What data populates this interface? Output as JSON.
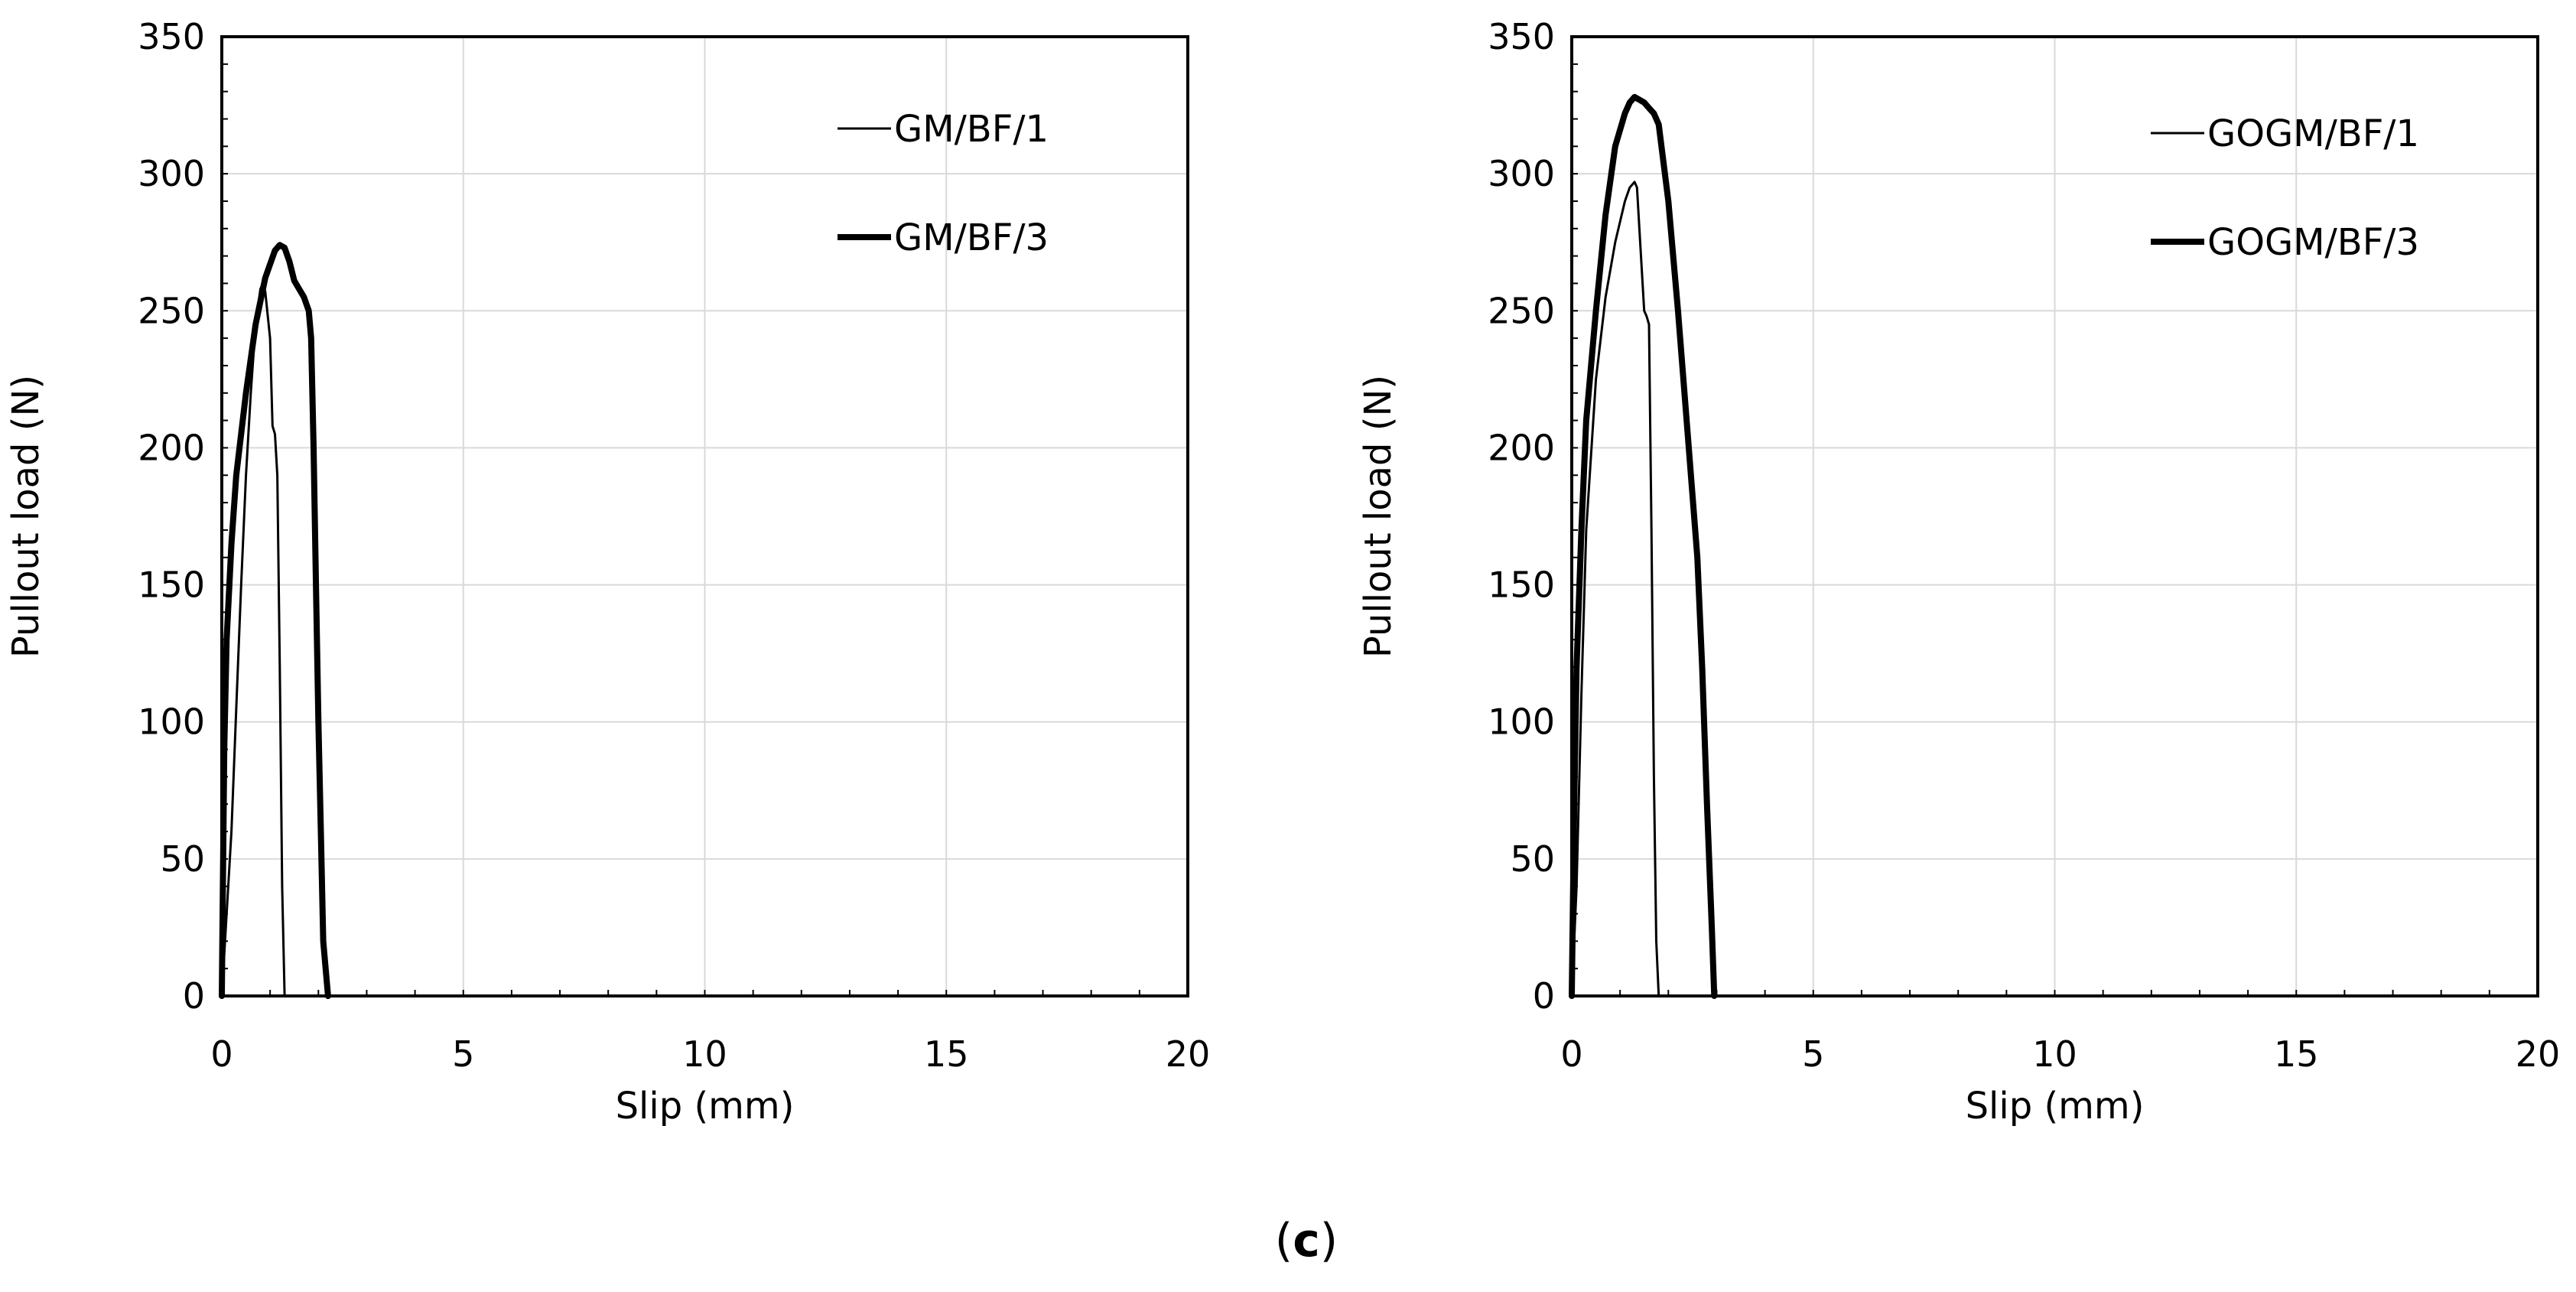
{
  "figure_label": {
    "open": "(",
    "letter": "c",
    "close": ")"
  },
  "colors": {
    "line": "#000000",
    "grid": "#d9d9d9",
    "frame": "#000000",
    "background": "#ffffff"
  },
  "chart_data": [
    {
      "type": "line",
      "title": "",
      "xlabel": "Slip (mm)",
      "ylabel": "Pullout load (N)",
      "xlim": [
        0,
        20
      ],
      "ylim": [
        0,
        350
      ],
      "xticks": [
        0,
        5,
        10,
        15,
        20
      ],
      "yticks": [
        0,
        50,
        100,
        150,
        200,
        250,
        300,
        350
      ],
      "grid": true,
      "legend_position": "top-right",
      "series": [
        {
          "name": "GM/BF/1",
          "style": "thin",
          "x": [
            0,
            0.1,
            0.2,
            0.3,
            0.4,
            0.5,
            0.6,
            0.7,
            0.8,
            0.85,
            0.9,
            1.0,
            1.05,
            1.1,
            1.15,
            1.2,
            1.25,
            1.3
          ],
          "y": [
            0,
            30,
            60,
            105,
            150,
            190,
            220,
            245,
            258,
            260,
            257,
            240,
            208,
            205,
            190,
            120,
            40,
            0
          ]
        },
        {
          "name": "GM/BF/3",
          "style": "thick",
          "x": [
            0,
            0.05,
            0.1,
            0.2,
            0.3,
            0.5,
            0.7,
            0.9,
            1.0,
            1.1,
            1.2,
            1.3,
            1.4,
            1.5,
            1.6,
            1.7,
            1.8,
            1.85,
            1.9,
            1.95,
            2.0,
            2.05,
            2.1,
            2.2
          ],
          "y": [
            0,
            90,
            130,
            165,
            190,
            220,
            245,
            262,
            267,
            272,
            274,
            273,
            268,
            261,
            258,
            255,
            250,
            240,
            200,
            150,
            100,
            60,
            20,
            0
          ]
        }
      ]
    },
    {
      "type": "line",
      "title": "",
      "xlabel": "Slip (mm)",
      "ylabel": "Pullout load (N)",
      "xlim": [
        0,
        20
      ],
      "ylim": [
        0,
        350
      ],
      "xticks": [
        0,
        5,
        10,
        15,
        20
      ],
      "yticks": [
        0,
        50,
        100,
        150,
        200,
        250,
        300,
        350
      ],
      "grid": true,
      "legend_position": "top-right",
      "series": [
        {
          "name": "GOGM/BF/1",
          "style": "thin",
          "x": [
            0,
            0.1,
            0.2,
            0.3,
            0.5,
            0.7,
            0.9,
            1.1,
            1.2,
            1.3,
            1.35,
            1.4,
            1.5,
            1.55,
            1.6,
            1.65,
            1.7,
            1.75,
            1.8
          ],
          "y": [
            0,
            40,
            110,
            170,
            225,
            255,
            275,
            290,
            295,
            297,
            295,
            280,
            250,
            248,
            245,
            170,
            80,
            20,
            0
          ]
        },
        {
          "name": "GOGM/BF/3",
          "style": "thick",
          "x": [
            0,
            0.05,
            0.1,
            0.2,
            0.3,
            0.5,
            0.7,
            0.9,
            1.1,
            1.2,
            1.3,
            1.4,
            1.5,
            1.6,
            1.7,
            1.8,
            2.0,
            2.2,
            2.4,
            2.6,
            2.7,
            2.8,
            2.9,
            2.95
          ],
          "y": [
            0,
            70,
            120,
            170,
            210,
            250,
            285,
            310,
            322,
            326,
            328,
            327,
            326,
            324,
            322,
            318,
            290,
            250,
            205,
            160,
            120,
            70,
            25,
            0
          ]
        }
      ]
    }
  ]
}
